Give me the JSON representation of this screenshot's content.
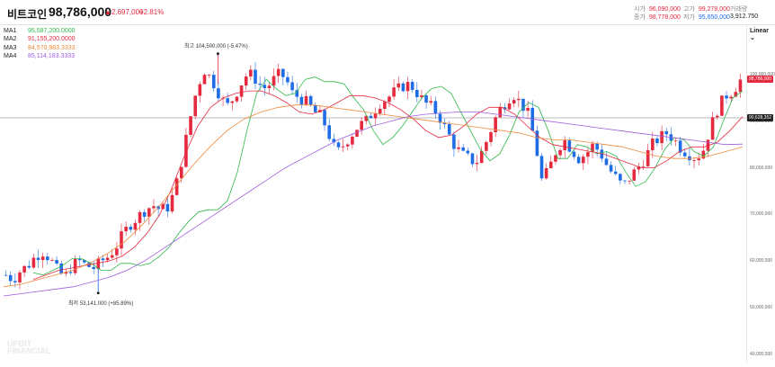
{
  "header": {
    "coin_name": "비트코인",
    "price": "98,786,000",
    "change": "▲2,697,000",
    "change_pct": "+2.81%",
    "stats": {
      "open_label": "시가",
      "open": "96,090,000",
      "close_label": "종가",
      "close": "98,778,000",
      "high_label": "고가",
      "high": "99,278,000",
      "low_label": "저가",
      "low": "95,650,000",
      "volume_label": "거래량",
      "volume": "3,912.750"
    }
  },
  "scale": "Linear",
  "legend": [
    {
      "name": "MA1",
      "value": "95,587,200.0000",
      "color": "#2db84a"
    },
    {
      "name": "MA2",
      "value": "91,155,200.0000",
      "color": "#e5293e"
    },
    {
      "name": "MA3",
      "value": "84,570,983.3333",
      "color": "#f08a3c"
    },
    {
      "name": "MA4",
      "value": "85,114,183.3333",
      "color": "#a05ce0"
    }
  ],
  "y_ticks": [
    "100,000,000",
    "90,000,000",
    "80,000,000",
    "70,000,000",
    "60,000,000",
    "50,000,000",
    "40,000,000"
  ],
  "current_price_tag": "98,786,000",
  "crosshair_tag": "90,628,352",
  "annotations": {
    "high": "최고 104,500,000 (-5.47%)",
    "low": "최저 53,141,000 (+85.89%)"
  },
  "watermark_line1": "UPBIT",
  "watermark_line2": "FINANCIAL",
  "colors": {
    "up": "#e5293e",
    "down": "#1e6de6"
  },
  "chart_data": {
    "type": "candlestick",
    "y_unit": "KRW",
    "ylim": [
      40000000,
      108000000
    ],
    "high_value": 104500000,
    "low_value": 53141000,
    "close_path": [
      57000000,
      56000000,
      58000000,
      59000000,
      61000000,
      62000000,
      60500000,
      58000000,
      56500000,
      59000000,
      60000000,
      59000000,
      58500000,
      60000000,
      61000000,
      63000000,
      66000000,
      68000000,
      69500000,
      71000000,
      72000000,
      71000000,
      71500000,
      75000000,
      82000000,
      90000000,
      97000000,
      101000000,
      99000000,
      96000000,
      93000000,
      95000000,
      98000000,
      100500000,
      99000000,
      97000000,
      98000000,
      100000000,
      99500000,
      96000000,
      95000000,
      94000000,
      92000000,
      91000000,
      87000000,
      83000000,
      85000000,
      87000000,
      89000000,
      90000000,
      92000000,
      94000000,
      95000000,
      96500000,
      97500000,
      98000000,
      96000000,
      94000000,
      93000000,
      91000000,
      88000000,
      85000000,
      83000000,
      82000000,
      81000000,
      84000000,
      88000000,
      92000000,
      94000000,
      96000000,
      94000000,
      92000000,
      86000000,
      77000000,
      80000000,
      84000000,
      86000000,
      84000000,
      82000000,
      83000000,
      85000000,
      83000000,
      80000000,
      78000000,
      76000000,
      78000000,
      80000000,
      82000000,
      85000000,
      86500000,
      87500000,
      86000000,
      84000000,
      83000000,
      82000000,
      84000000,
      89000000,
      93000000,
      95500000,
      96500000,
      98786000
    ],
    "ma_series": [
      {
        "name": "MA1",
        "values": [
          57500000,
          57000000,
          58000000,
          59000000,
          60500000,
          60500000,
          59500000,
          58000000,
          58000000,
          59500000,
          59500000,
          59000000,
          59500000,
          61000000,
          63000000,
          66000000,
          68500000,
          70500000,
          71000000,
          71000000,
          73000000,
          79000000,
          88000000,
          96000000,
          99000000,
          97000000,
          95500000,
          96000000,
          99000000,
          99500000,
          98500000,
          98500000,
          98000000,
          95000000,
          92500000,
          88000000,
          85000000,
          86500000,
          89000000,
          92000000,
          95000000,
          97000000,
          97500000,
          96000000,
          92000000,
          88000000,
          84000000,
          81500000,
          83000000,
          87000000,
          92000000,
          94000000,
          93000000,
          88000000,
          82000000,
          82000000,
          85000000,
          84500000,
          83000000,
          83500000,
          82500000,
          79000000,
          76000000,
          77000000,
          80000000,
          84000000,
          86500000,
          86000000,
          83500000,
          82500000,
          84500000,
          90000000,
          95000000,
          96500000
        ]
      },
      {
        "name": "MA2",
        "values": [
          56000000,
          57000000,
          58000000,
          58500000,
          59000000,
          59500000,
          60000000,
          61000000,
          63000000,
          66000000,
          70000000,
          76000000,
          83000000,
          89000000,
          93000000,
          95000000,
          96000000,
          96500000,
          96500000,
          95500000,
          94000000,
          92000000,
          91500000,
          92500000,
          94000000,
          95500000,
          95500000,
          95000000,
          94000000,
          92500000,
          90500000,
          88000000,
          86500000,
          87000000,
          89000000,
          91500000,
          93000000,
          93000000,
          91500000,
          89000000,
          86500000,
          85000000,
          84500000,
          84000000,
          83500000,
          83000000,
          82000000,
          81000000,
          80000000,
          80000000,
          81500000,
          83500000,
          84500000,
          84500000,
          85500000,
          88000000,
          91000000
        ]
      },
      {
        "name": "MA3",
        "values": [
          54500000,
          55000000,
          56000000,
          57000000,
          58000000,
          59500000,
          61500000,
          64000000,
          67500000,
          71500000,
          76000000,
          80500000,
          84500000,
          88000000,
          90500000,
          92000000,
          93000000,
          93500000,
          93500000,
          93000000,
          92500000,
          92000000,
          91500000,
          91000000,
          90500000,
          90000000,
          89500000,
          89000000,
          88500000,
          88000000,
          87500000,
          86500000,
          86000000,
          86000000,
          85500000,
          85000000,
          84500000,
          83500000,
          82500000,
          82000000,
          82000000,
          82500000,
          83500000,
          84500000
        ]
      },
      {
        "name": "MA4",
        "values": [
          52500000,
          53000000,
          53500000,
          54000000,
          54500000,
          55500000,
          56500000,
          58000000,
          60000000,
          62500000,
          65000000,
          67500000,
          70000000,
          72500000,
          75000000,
          77500000,
          80000000,
          82000000,
          84000000,
          86000000,
          87500000,
          89000000,
          90000000,
          91000000,
          91500000,
          91800000,
          92000000,
          92000000,
          91500000,
          91000000,
          90500000,
          90000000,
          89500000,
          89000000,
          88500000,
          88000000,
          87500000,
          87000000,
          86500000,
          86000000,
          85500000,
          85000000,
          85100000
        ]
      }
    ]
  }
}
